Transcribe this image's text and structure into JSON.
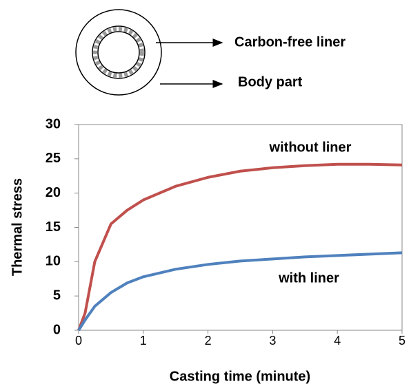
{
  "diagram": {
    "labels": [
      "Carbon-free liner",
      "Body part"
    ]
  },
  "chart_data": {
    "type": "line",
    "x_label": "Casting time (minute)",
    "y_label": "Thermal stress",
    "x": [
      0,
      0.1,
      0.25,
      0.5,
      0.75,
      1,
      1.5,
      2,
      2.5,
      3,
      3.5,
      4,
      4.5,
      5
    ],
    "series": [
      {
        "name": "without liner",
        "color": "#c0504d",
        "values": [
          0,
          2.5,
          10,
          15.5,
          17.5,
          19,
          21,
          22.3,
          23.2,
          23.7,
          24,
          24.2,
          24.2,
          24.1
        ]
      },
      {
        "name": "with liner",
        "color": "#4f81bd",
        "values": [
          0,
          1.5,
          3.5,
          5.5,
          6.9,
          7.8,
          8.9,
          9.6,
          10.1,
          10.4,
          10.7,
          10.9,
          11.1,
          11.3
        ]
      }
    ],
    "xlim": [
      0,
      5
    ],
    "xticks": [
      0,
      1,
      2,
      3,
      4,
      5
    ],
    "ylim": [
      0,
      30
    ],
    "yticks": [
      0,
      5,
      10,
      15,
      20,
      25,
      30
    ],
    "grid": false
  }
}
